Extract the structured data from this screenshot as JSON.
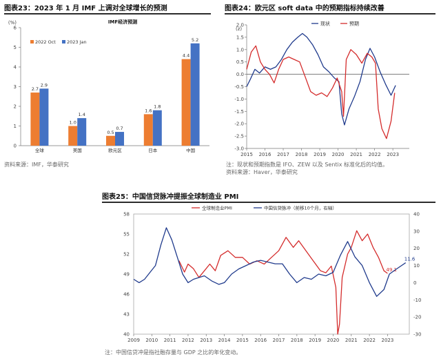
{
  "panel1": {
    "title": "图表23：2023 年 1 月 IMF 上调对全球增长的预测",
    "source": "资料来源：IMF，华泰研究",
    "chart_data": {
      "type": "bar",
      "title": "IMF经济预测",
      "ylabel": "(%)",
      "ylim": [
        0,
        6
      ],
      "yticks": [
        0,
        1,
        2,
        3,
        4,
        5,
        6
      ],
      "categories": [
        "全球",
        "美国",
        "欧元区",
        "日本",
        "中国"
      ],
      "series": [
        {
          "name": "2022 Oct",
          "color": "#ED7D31",
          "values": [
            2.7,
            1.0,
            0.5,
            1.6,
            4.4
          ]
        },
        {
          "name": "2023 Jan",
          "color": "#4472C4",
          "values": [
            2.9,
            1.4,
            0.7,
            1.8,
            5.2
          ]
        }
      ]
    }
  },
  "panel2": {
    "title": "图表24：欧元区 soft data 中的预期指标持续改善",
    "note": "注：现状和预期指数是 IFO、ZEW 以及 Sentix 标准化后的均值。",
    "source": "资料来源：Haver，华泰研究",
    "chart_data": {
      "type": "line",
      "ylabel": "(z)",
      "xlim": [
        2015,
        2023.9
      ],
      "ylim": [
        -3.0,
        2.0
      ],
      "yticks": [
        -3.0,
        -2.5,
        -2.0,
        -1.5,
        -1.0,
        -0.5,
        0.0,
        0.5,
        1.0,
        1.5,
        2.0
      ],
      "xticks": [
        "2015",
        "2016",
        "2017",
        "2018",
        "2019",
        "2020",
        "2021",
        "2022",
        "2023"
      ],
      "series": [
        {
          "name": "现状",
          "color": "#1F3A8C",
          "x": [
            2015.0,
            2015.2,
            2015.45,
            2015.7,
            2016.0,
            2016.3,
            2016.6,
            2016.9,
            2017.2,
            2017.5,
            2017.8,
            2018.05,
            2018.3,
            2018.6,
            2018.9,
            2019.2,
            2019.5,
            2019.8,
            2020.05,
            2020.2,
            2020.35,
            2020.6,
            2020.9,
            2021.2,
            2021.5,
            2021.75,
            2022.0,
            2022.3,
            2022.6,
            2022.9,
            2023.15
          ],
          "y": [
            -0.5,
            -0.2,
            0.2,
            0.05,
            0.3,
            0.2,
            0.3,
            0.6,
            1.0,
            1.3,
            1.5,
            1.65,
            1.5,
            1.2,
            0.8,
            0.3,
            0.1,
            -0.15,
            -0.3,
            -1.6,
            -2.05,
            -1.4,
            -0.9,
            -0.3,
            0.6,
            1.05,
            0.7,
            0.1,
            -0.4,
            -0.85,
            -0.45
          ]
        },
        {
          "name": "预期",
          "color": "#D42B2B",
          "x": [
            2015.0,
            2015.25,
            2015.5,
            2015.75,
            2016.0,
            2016.25,
            2016.5,
            2016.75,
            2017.0,
            2017.3,
            2017.6,
            2017.9,
            2018.2,
            2018.5,
            2018.8,
            2019.1,
            2019.4,
            2019.7,
            2019.95,
            2020.2,
            2020.3,
            2020.45,
            2020.7,
            2021.0,
            2021.3,
            2021.6,
            2021.85,
            2022.05,
            2022.2,
            2022.4,
            2022.65,
            2022.9,
            2023.1
          ],
          "y": [
            0.2,
            0.9,
            1.15,
            0.5,
            0.2,
            0.0,
            -0.35,
            0.2,
            0.6,
            0.7,
            0.6,
            0.5,
            -0.1,
            -0.7,
            -0.85,
            -0.75,
            -0.9,
            -0.55,
            -0.15,
            -0.7,
            -1.7,
            0.6,
            1.0,
            0.8,
            0.45,
            0.85,
            0.7,
            0.45,
            -1.4,
            -2.2,
            -2.6,
            -1.9,
            -0.75
          ]
        }
      ]
    }
  },
  "panel3": {
    "title": "图表25：中国信贷脉冲提振全球制造业 PMI",
    "note": "注：中国信贷冲是指社融存量与 GDP 之比的年化变动。",
    "chart_data": {
      "type": "line",
      "xlim": [
        2009,
        2024.2
      ],
      "xticks": [
        "2009",
        "2010",
        "2011",
        "2012",
        "2013",
        "2014",
        "2015",
        "2016",
        "2017",
        "2018",
        "2019",
        "2020",
        "2021",
        "2022",
        "2023"
      ],
      "left_axis": {
        "ylim": [
          40,
          58
        ],
        "yticks": [
          40,
          43,
          46,
          49,
          52,
          55,
          58
        ]
      },
      "right_axis": {
        "ylim": [
          -30,
          40
        ],
        "yticks": [
          -30,
          -20,
          -10,
          0,
          10,
          20,
          30,
          40
        ]
      },
      "series": [
        {
          "name": "全球制造业PMI",
          "axis": "left",
          "color": "#D42B2B",
          "end_label": "49.1",
          "x": [
            2011.5,
            2011.8,
            2012.0,
            2012.3,
            2012.6,
            2012.9,
            2013.2,
            2013.5,
            2013.8,
            2014.2,
            2014.6,
            2015.0,
            2015.4,
            2015.8,
            2016.2,
            2016.6,
            2017.0,
            2017.4,
            2017.8,
            2018.1,
            2018.5,
            2018.9,
            2019.3,
            2019.6,
            2019.9,
            2020.15,
            2020.25,
            2020.35,
            2020.5,
            2020.8,
            2021.0,
            2021.3,
            2021.6,
            2021.9,
            2022.2,
            2022.5,
            2022.8,
            2023.0
          ],
          "y": [
            51.0,
            49.3,
            50.5,
            49.8,
            48.5,
            49.5,
            50.5,
            49.5,
            51.8,
            52.5,
            51.5,
            51.5,
            50.5,
            51.0,
            50.5,
            51.5,
            52.5,
            54.5,
            53.0,
            54.0,
            52.5,
            51.0,
            49.5,
            49.2,
            50.2,
            47.0,
            40.0,
            41.5,
            48.5,
            52.0,
            53.0,
            55.5,
            54.0,
            55.0,
            53.0,
            51.5,
            49.5,
            49.1
          ]
        },
        {
          "name": "中国信贷脉冲（前移10个月，右轴）",
          "axis": "right",
          "color": "#1F3A8C",
          "end_label": "11.6",
          "x": [
            2009.0,
            2009.3,
            2009.6,
            2009.9,
            2010.2,
            2010.5,
            2010.8,
            2011.1,
            2011.4,
            2011.7,
            2012.0,
            2012.3,
            2012.6,
            2012.9,
            2013.3,
            2013.7,
            2014.0,
            2014.4,
            2014.8,
            2015.2,
            2015.6,
            2016.0,
            2016.4,
            2016.8,
            2017.2,
            2017.6,
            2018.0,
            2018.4,
            2018.8,
            2019.2,
            2019.6,
            2020.0,
            2020.4,
            2020.8,
            2021.2,
            2021.6,
            2022.0,
            2022.4,
            2022.8,
            2023.1,
            2023.5,
            2024.0
          ],
          "y": [
            2.0,
            0.0,
            2.0,
            6.0,
            10.0,
            22.0,
            32.0,
            25.0,
            15.0,
            5.0,
            0.0,
            2.0,
            3.0,
            4.0,
            1.0,
            -1.0,
            0.0,
            5.0,
            8.0,
            10.0,
            12.0,
            13.0,
            12.0,
            11.0,
            11.0,
            5.0,
            0.0,
            3.0,
            2.0,
            5.0,
            4.0,
            6.0,
            16.0,
            24.0,
            15.0,
            10.0,
            0.0,
            -8.0,
            -4.0,
            5.0,
            8.0,
            11.6
          ]
        }
      ]
    }
  }
}
